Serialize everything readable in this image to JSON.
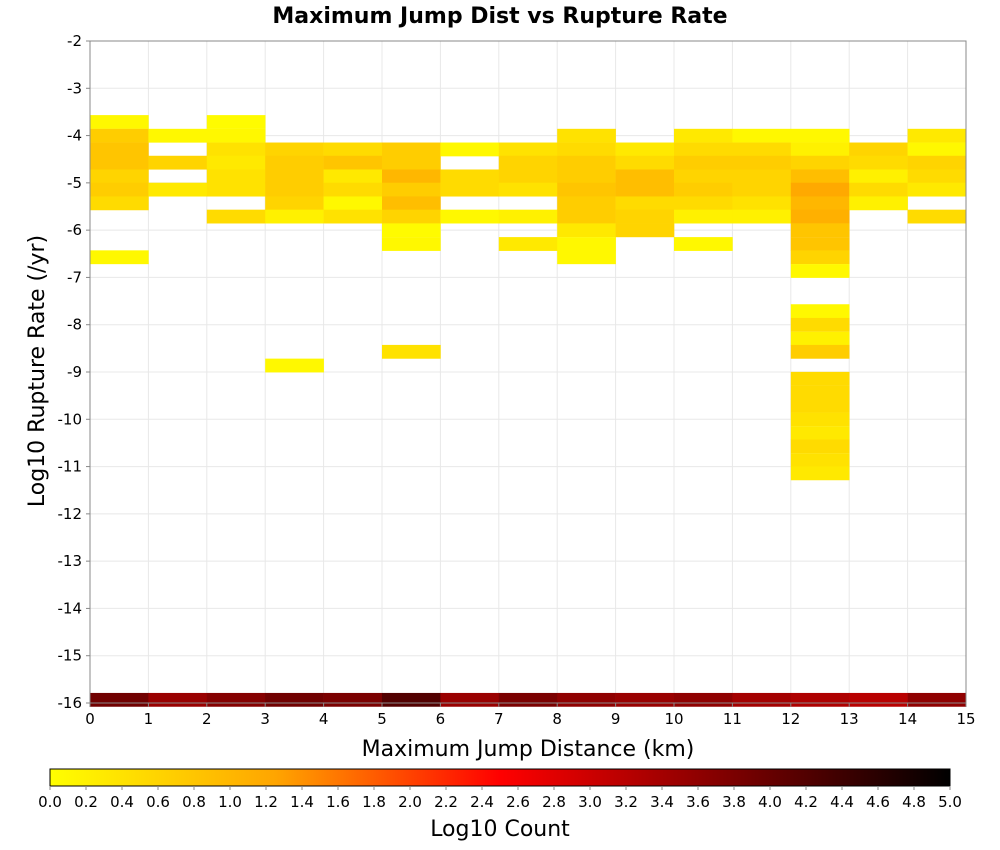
{
  "chart_data": {
    "type": "heatmap",
    "title": "Maximum Jump Dist vs Rupture Rate",
    "xlabel": "Maximum Jump Distance (km)",
    "ylabel": "Log10 Rupture Rate (/yr)",
    "xlim": [
      0,
      15
    ],
    "ylim": [
      -16,
      -2
    ],
    "x_ticks": [
      "0",
      "1",
      "2",
      "3",
      "4",
      "5",
      "6",
      "7",
      "8",
      "9",
      "10",
      "11",
      "12",
      "13",
      "14",
      "15"
    ],
    "y_ticks": [
      "-16",
      "-15",
      "-14",
      "-13",
      "-12",
      "-11",
      "-10",
      "-9",
      "-8",
      "-7",
      "-6",
      "-5",
      "-4",
      "-3",
      "-2"
    ],
    "grid": true,
    "bin_width_x": 1,
    "bin_height_y": 0.2857,
    "colorbar": {
      "label": "Log10 Count",
      "min": 0,
      "max": 5,
      "ticks": [
        "0.0",
        "0.2",
        "0.4",
        "0.6",
        "0.8",
        "1.0",
        "1.2",
        "1.4",
        "1.6",
        "1.8",
        "2.0",
        "2.2",
        "2.4",
        "2.6",
        "2.8",
        "3.0",
        "3.2",
        "3.4",
        "3.6",
        "3.8",
        "4.0",
        "4.2",
        "4.4",
        "4.6",
        "4.8",
        "5.0"
      ],
      "colors": [
        "#ffff00",
        "#ffa500",
        "#ff0000",
        "#800000",
        "#000000"
      ]
    },
    "cells": [
      {
        "x": 0.5,
        "y": -3.71,
        "v": 0.1
      },
      {
        "x": 0.5,
        "y": -4.0,
        "v": 0.7
      },
      {
        "x": 0.5,
        "y": -4.29,
        "v": 0.8
      },
      {
        "x": 0.5,
        "y": -4.57,
        "v": 0.8
      },
      {
        "x": 0.5,
        "y": -4.86,
        "v": 0.6
      },
      {
        "x": 0.5,
        "y": -5.14,
        "v": 0.7
      },
      {
        "x": 0.5,
        "y": -5.43,
        "v": 0.5
      },
      {
        "x": 0.5,
        "y": -6.57,
        "v": 0.1
      },
      {
        "x": 1.5,
        "y": -4.0,
        "v": 0.1
      },
      {
        "x": 1.5,
        "y": -4.57,
        "v": 0.6
      },
      {
        "x": 1.5,
        "y": -5.14,
        "v": 0.3
      },
      {
        "x": 2.5,
        "y": -3.71,
        "v": 0.05
      },
      {
        "x": 2.5,
        "y": -4.0,
        "v": 0.1
      },
      {
        "x": 2.5,
        "y": -4.29,
        "v": 0.4
      },
      {
        "x": 2.5,
        "y": -4.57,
        "v": 0.3
      },
      {
        "x": 2.5,
        "y": -4.86,
        "v": 0.4
      },
      {
        "x": 2.5,
        "y": -5.14,
        "v": 0.4
      },
      {
        "x": 2.5,
        "y": -5.71,
        "v": 0.5
      },
      {
        "x": 3.5,
        "y": -4.29,
        "v": 0.6
      },
      {
        "x": 3.5,
        "y": -4.57,
        "v": 0.7
      },
      {
        "x": 3.5,
        "y": -4.86,
        "v": 0.7
      },
      {
        "x": 3.5,
        "y": -5.14,
        "v": 0.7
      },
      {
        "x": 3.5,
        "y": -5.43,
        "v": 0.6
      },
      {
        "x": 3.5,
        "y": -5.71,
        "v": 0.2
      },
      {
        "x": 3.5,
        "y": -8.86,
        "v": 0.1
      },
      {
        "x": 4.5,
        "y": -4.29,
        "v": 0.5
      },
      {
        "x": 4.5,
        "y": -4.57,
        "v": 0.8
      },
      {
        "x": 4.5,
        "y": -4.86,
        "v": 0.3
      },
      {
        "x": 4.5,
        "y": -5.14,
        "v": 0.5
      },
      {
        "x": 4.5,
        "y": -5.43,
        "v": 0.1
      },
      {
        "x": 4.5,
        "y": -5.71,
        "v": 0.4
      },
      {
        "x": 5.5,
        "y": -4.29,
        "v": 0.7
      },
      {
        "x": 5.5,
        "y": -4.57,
        "v": 0.7
      },
      {
        "x": 5.5,
        "y": -4.86,
        "v": 1.0
      },
      {
        "x": 5.5,
        "y": -5.14,
        "v": 0.7
      },
      {
        "x": 5.5,
        "y": -5.43,
        "v": 0.9
      },
      {
        "x": 5.5,
        "y": -5.71,
        "v": 0.6
      },
      {
        "x": 5.5,
        "y": -6.0,
        "v": 0.05
      },
      {
        "x": 5.5,
        "y": -6.29,
        "v": 0.1
      },
      {
        "x": 5.5,
        "y": -8.57,
        "v": 0.4
      },
      {
        "x": 6.5,
        "y": -4.29,
        "v": 0.1
      },
      {
        "x": 6.5,
        "y": -4.86,
        "v": 0.5
      },
      {
        "x": 6.5,
        "y": -5.14,
        "v": 0.5
      },
      {
        "x": 6.5,
        "y": -5.71,
        "v": 0.1
      },
      {
        "x": 7.5,
        "y": -4.29,
        "v": 0.4
      },
      {
        "x": 7.5,
        "y": -4.57,
        "v": 0.6
      },
      {
        "x": 7.5,
        "y": -4.86,
        "v": 0.6
      },
      {
        "x": 7.5,
        "y": -5.14,
        "v": 0.4
      },
      {
        "x": 7.5,
        "y": -5.71,
        "v": 0.2
      },
      {
        "x": 7.5,
        "y": -6.29,
        "v": 0.3
      },
      {
        "x": 8.5,
        "y": -4.0,
        "v": 0.4
      },
      {
        "x": 8.5,
        "y": -4.29,
        "v": 0.5
      },
      {
        "x": 8.5,
        "y": -4.57,
        "v": 0.7
      },
      {
        "x": 8.5,
        "y": -4.86,
        "v": 0.7
      },
      {
        "x": 8.5,
        "y": -5.14,
        "v": 0.8
      },
      {
        "x": 8.5,
        "y": -5.43,
        "v": 0.7
      },
      {
        "x": 8.5,
        "y": -5.71,
        "v": 0.7
      },
      {
        "x": 8.5,
        "y": -6.0,
        "v": 0.3
      },
      {
        "x": 8.5,
        "y": -6.29,
        "v": 0.1
      },
      {
        "x": 8.5,
        "y": -6.57,
        "v": 0.1
      },
      {
        "x": 9.5,
        "y": -4.29,
        "v": 0.3
      },
      {
        "x": 9.5,
        "y": -4.57,
        "v": 0.5
      },
      {
        "x": 9.5,
        "y": -4.86,
        "v": 0.9
      },
      {
        "x": 9.5,
        "y": -5.14,
        "v": 0.9
      },
      {
        "x": 9.5,
        "y": -5.43,
        "v": 0.5
      },
      {
        "x": 9.5,
        "y": -5.71,
        "v": 0.6
      },
      {
        "x": 9.5,
        "y": -6.0,
        "v": 0.6
      },
      {
        "x": 10.5,
        "y": -4.0,
        "v": 0.3
      },
      {
        "x": 10.5,
        "y": -4.29,
        "v": 0.5
      },
      {
        "x": 10.5,
        "y": -4.57,
        "v": 0.7
      },
      {
        "x": 10.5,
        "y": -4.86,
        "v": 0.6
      },
      {
        "x": 10.5,
        "y": -5.14,
        "v": 0.7
      },
      {
        "x": 10.5,
        "y": -5.43,
        "v": 0.5
      },
      {
        "x": 10.5,
        "y": -5.71,
        "v": 0.2
      },
      {
        "x": 10.5,
        "y": -6.29,
        "v": 0.1
      },
      {
        "x": 11.5,
        "y": -4.0,
        "v": 0.1
      },
      {
        "x": 11.5,
        "y": -4.29,
        "v": 0.5
      },
      {
        "x": 11.5,
        "y": -4.57,
        "v": 0.7
      },
      {
        "x": 11.5,
        "y": -4.86,
        "v": 0.6
      },
      {
        "x": 11.5,
        "y": -5.14,
        "v": 0.6
      },
      {
        "x": 11.5,
        "y": -5.43,
        "v": 0.4
      },
      {
        "x": 11.5,
        "y": -5.71,
        "v": 0.2
      },
      {
        "x": 12.5,
        "y": -4.0,
        "v": 0.1
      },
      {
        "x": 12.5,
        "y": -4.29,
        "v": 0.2
      },
      {
        "x": 12.5,
        "y": -4.57,
        "v": 0.6
      },
      {
        "x": 12.5,
        "y": -4.86,
        "v": 0.9
      },
      {
        "x": 12.5,
        "y": -5.14,
        "v": 1.2
      },
      {
        "x": 12.5,
        "y": -5.43,
        "v": 1.0
      },
      {
        "x": 12.5,
        "y": -5.71,
        "v": 1.1
      },
      {
        "x": 12.5,
        "y": -6.0,
        "v": 0.8
      },
      {
        "x": 12.5,
        "y": -6.29,
        "v": 0.8
      },
      {
        "x": 12.5,
        "y": -6.57,
        "v": 0.6
      },
      {
        "x": 12.5,
        "y": -6.86,
        "v": 0.1
      },
      {
        "x": 12.5,
        "y": -7.71,
        "v": 0.1
      },
      {
        "x": 12.5,
        "y": -8.0,
        "v": 0.5
      },
      {
        "x": 12.5,
        "y": -8.29,
        "v": 0.2
      },
      {
        "x": 12.5,
        "y": -8.57,
        "v": 0.7
      },
      {
        "x": 12.5,
        "y": -9.14,
        "v": 0.5
      },
      {
        "x": 12.5,
        "y": -9.43,
        "v": 0.5
      },
      {
        "x": 12.5,
        "y": -9.71,
        "v": 0.5
      },
      {
        "x": 12.5,
        "y": -10.0,
        "v": 0.4
      },
      {
        "x": 12.5,
        "y": -10.29,
        "v": 0.3
      },
      {
        "x": 12.5,
        "y": -10.57,
        "v": 0.5
      },
      {
        "x": 12.5,
        "y": -10.86,
        "v": 0.4
      },
      {
        "x": 12.5,
        "y": -11.14,
        "v": 0.3
      },
      {
        "x": 13.5,
        "y": -4.29,
        "v": 0.6
      },
      {
        "x": 13.5,
        "y": -4.57,
        "v": 0.5
      },
      {
        "x": 13.5,
        "y": -4.86,
        "v": 0.2
      },
      {
        "x": 13.5,
        "y": -5.14,
        "v": 0.5
      },
      {
        "x": 13.5,
        "y": -5.43,
        "v": 0.2
      },
      {
        "x": 14.5,
        "y": -4.0,
        "v": 0.3
      },
      {
        "x": 14.5,
        "y": -4.29,
        "v": 0.1
      },
      {
        "x": 14.5,
        "y": -4.57,
        "v": 0.6
      },
      {
        "x": 14.5,
        "y": -4.86,
        "v": 0.5
      },
      {
        "x": 14.5,
        "y": -5.14,
        "v": 0.3
      },
      {
        "x": 14.5,
        "y": -5.71,
        "v": 0.5
      },
      {
        "x": 0.5,
        "y": -15.93,
        "v": 3.9
      },
      {
        "x": 1.5,
        "y": -15.93,
        "v": 3.5
      },
      {
        "x": 2.5,
        "y": -15.93,
        "v": 3.7
      },
      {
        "x": 3.5,
        "y": -15.93,
        "v": 3.9
      },
      {
        "x": 4.5,
        "y": -15.93,
        "v": 3.8
      },
      {
        "x": 5.5,
        "y": -15.93,
        "v": 4.2
      },
      {
        "x": 6.5,
        "y": -15.93,
        "v": 3.5
      },
      {
        "x": 7.5,
        "y": -15.93,
        "v": 3.8
      },
      {
        "x": 8.5,
        "y": -15.93,
        "v": 3.6
      },
      {
        "x": 9.5,
        "y": -15.93,
        "v": 3.5
      },
      {
        "x": 10.5,
        "y": -15.93,
        "v": 3.6
      },
      {
        "x": 11.5,
        "y": -15.93,
        "v": 3.4
      },
      {
        "x": 12.5,
        "y": -15.93,
        "v": 3.3
      },
      {
        "x": 13.5,
        "y": -15.93,
        "v": 3.2
      },
      {
        "x": 14.5,
        "y": -15.93,
        "v": 3.6
      }
    ]
  }
}
